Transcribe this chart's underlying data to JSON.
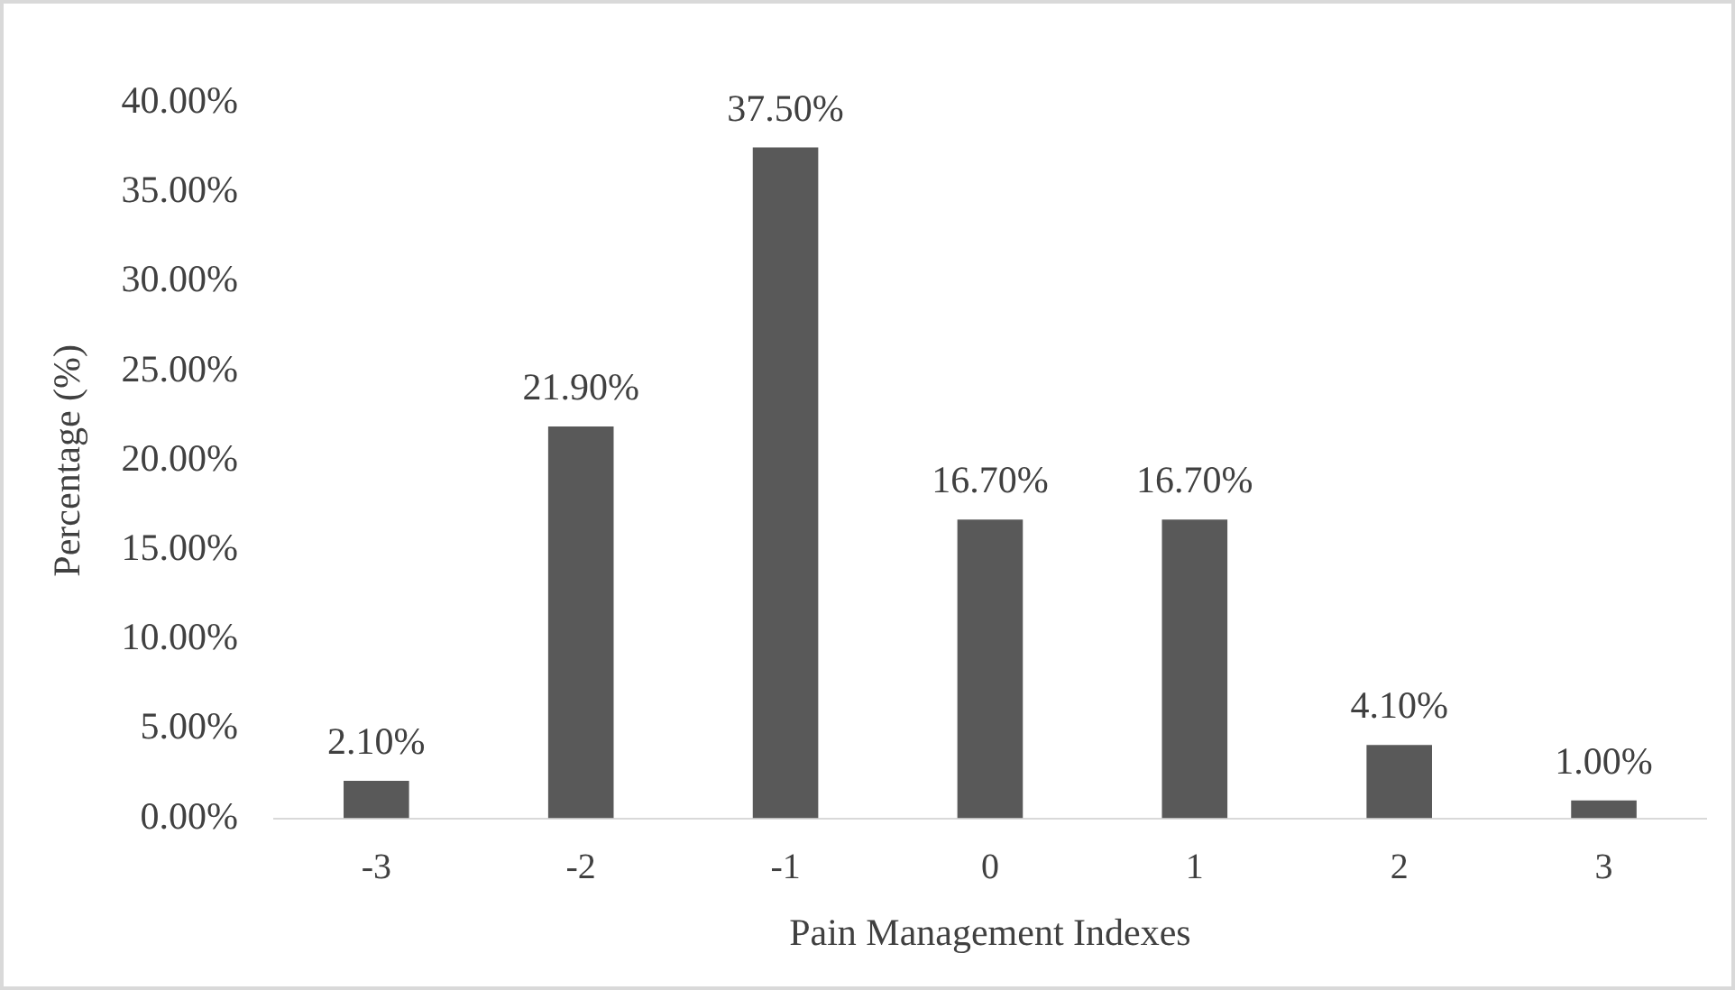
{
  "chart_data": {
    "type": "bar",
    "xlabel": "Pain Management Indexes",
    "ylabel": "Percentage (%)",
    "categories": [
      "-3",
      "-2",
      "-1",
      "0",
      "1",
      "2",
      "3"
    ],
    "values": [
      2.1,
      21.9,
      37.5,
      16.7,
      16.7,
      4.1,
      1.0
    ],
    "value_labels": [
      "2.10%",
      "21.90%",
      "37.50%",
      "16.70%",
      "16.70%",
      "4.10%",
      "1.00%"
    ],
    "color": "#595959",
    "ylim": [
      0,
      40
    ],
    "yticks": [
      {
        "value": 0,
        "label": "0.00%"
      },
      {
        "value": 5,
        "label": "5.00%"
      },
      {
        "value": 10,
        "label": "10.00%"
      },
      {
        "value": 15,
        "label": "15.00%"
      },
      {
        "value": 20,
        "label": "20.00%"
      },
      {
        "value": 25,
        "label": "25.00%"
      },
      {
        "value": 30,
        "label": "30.00%"
      },
      {
        "value": 35,
        "label": "35.00%"
      },
      {
        "value": 40,
        "label": "40.00%"
      }
    ],
    "grid": false
  }
}
